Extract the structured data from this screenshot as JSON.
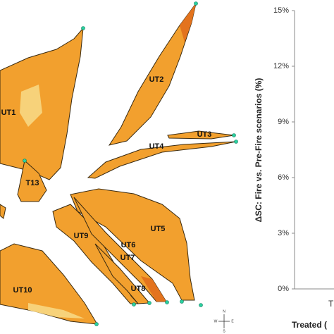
{
  "map": {
    "labels": [
      "UT1",
      "UT2",
      "UT3",
      "UT4",
      "T13",
      "UT5",
      "UT9",
      "UT6",
      "UT7",
      "UT8",
      "UT10"
    ],
    "compass": {
      "north": "N",
      "south": "S",
      "east": "E",
      "west": "W"
    }
  },
  "chart": {
    "ylabel": "ΔSC: Fire vs. Pre-Fire scenarios (%)",
    "ylim": [
      0,
      15
    ],
    "yticks": [
      {
        "value": 0,
        "label": "0%"
      },
      {
        "value": 3,
        "label": "3%"
      },
      {
        "value": 6,
        "label": "6%"
      },
      {
        "value": 9,
        "label": "9%"
      },
      {
        "value": 12,
        "label": "12%"
      },
      {
        "value": 15,
        "label": "15%"
      }
    ],
    "category": "T",
    "xlabel": "Treated ("
  }
}
